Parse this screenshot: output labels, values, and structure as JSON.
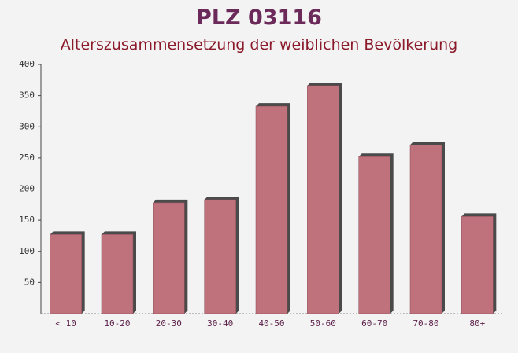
{
  "chart_data": {
    "type": "bar",
    "title": "PLZ 03116",
    "subtitle": "Alterszusammensetzung der weiblichen Bevölkerung",
    "categories": [
      "< 10",
      "10-20",
      "20-30",
      "30-40",
      "40-50",
      "50-60",
      "60-70",
      "70-80",
      "80+"
    ],
    "values": [
      127,
      127,
      178,
      183,
      333,
      366,
      252,
      271,
      156
    ],
    "color": "#c0727c",
    "ylim": [
      0,
      400
    ],
    "yticks": [
      50,
      100,
      150,
      200,
      250,
      300,
      350,
      400
    ],
    "grid": false
  }
}
